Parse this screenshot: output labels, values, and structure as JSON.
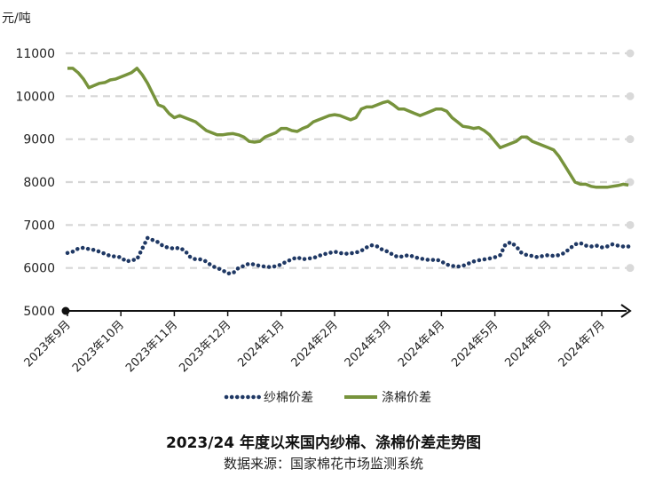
{
  "chart_data": {
    "type": "line",
    "title": "2023/24 年度以来国内纱棉、涤棉价差走势图",
    "source": "数据来源：国家棉花市场监测系统",
    "ylabel": "元/吨",
    "ylim": [
      5000,
      11000
    ],
    "yticks": [
      "5000",
      "6000",
      "7000",
      "8000",
      "9000",
      "10000",
      "11000"
    ],
    "categories": [
      "2023年9月",
      "2023年10月",
      "2023年11月",
      "2023年12月",
      "2024年1月",
      "2024年2月",
      "2024年3月",
      "2024年4月",
      "2024年5月",
      "2024年6月",
      "2024年7月"
    ],
    "grid": true,
    "legend_position": "bottom",
    "series": [
      {
        "name": "纱棉价差",
        "style": "dotted",
        "color": "#1f3864",
        "values": [
          [
            0.0,
            6350
          ],
          [
            0.1,
            6380
          ],
          [
            0.2,
            6450
          ],
          [
            0.3,
            6470
          ],
          [
            0.4,
            6440
          ],
          [
            0.5,
            6420
          ],
          [
            0.6,
            6380
          ],
          [
            0.7,
            6330
          ],
          [
            0.8,
            6280
          ],
          [
            1.0,
            6250
          ],
          [
            1.1,
            6150
          ],
          [
            1.2,
            6180
          ],
          [
            1.3,
            6200
          ],
          [
            1.4,
            6450
          ],
          [
            1.5,
            6700
          ],
          [
            1.6,
            6650
          ],
          [
            1.7,
            6600
          ],
          [
            1.8,
            6500
          ],
          [
            1.9,
            6470
          ],
          [
            2.0,
            6450
          ],
          [
            2.1,
            6470
          ],
          [
            2.2,
            6400
          ],
          [
            2.3,
            6250
          ],
          [
            2.4,
            6200
          ],
          [
            2.5,
            6200
          ],
          [
            2.6,
            6150
          ],
          [
            2.7,
            6050
          ],
          [
            2.8,
            6000
          ],
          [
            2.9,
            5950
          ],
          [
            3.0,
            5870
          ],
          [
            3.1,
            5880
          ],
          [
            3.2,
            6000
          ],
          [
            3.3,
            6050
          ],
          [
            3.4,
            6100
          ],
          [
            3.5,
            6080
          ],
          [
            3.6,
            6050
          ],
          [
            3.7,
            6030
          ],
          [
            3.8,
            6020
          ],
          [
            3.9,
            6040
          ],
          [
            4.0,
            6080
          ],
          [
            4.1,
            6150
          ],
          [
            4.2,
            6200
          ],
          [
            4.3,
            6250
          ],
          [
            4.4,
            6200
          ],
          [
            4.5,
            6220
          ],
          [
            4.6,
            6230
          ],
          [
            4.7,
            6280
          ],
          [
            4.8,
            6320
          ],
          [
            4.9,
            6350
          ],
          [
            5.0,
            6380
          ],
          [
            5.1,
            6350
          ],
          [
            5.2,
            6330
          ],
          [
            5.3,
            6340
          ],
          [
            5.4,
            6360
          ],
          [
            5.5,
            6400
          ],
          [
            5.6,
            6480
          ],
          [
            5.7,
            6530
          ],
          [
            5.8,
            6500
          ],
          [
            5.9,
            6420
          ],
          [
            6.0,
            6380
          ],
          [
            6.1,
            6300
          ],
          [
            6.2,
            6250
          ],
          [
            6.3,
            6280
          ],
          [
            6.4,
            6300
          ],
          [
            6.5,
            6250
          ],
          [
            6.6,
            6220
          ],
          [
            6.7,
            6200
          ],
          [
            6.8,
            6180
          ],
          [
            6.9,
            6200
          ],
          [
            7.0,
            6150
          ],
          [
            7.1,
            6080
          ],
          [
            7.2,
            6050
          ],
          [
            7.3,
            6030
          ],
          [
            7.4,
            6050
          ],
          [
            7.5,
            6100
          ],
          [
            7.6,
            6150
          ],
          [
            7.7,
            6180
          ],
          [
            7.8,
            6200
          ],
          [
            7.9,
            6220
          ],
          [
            8.0,
            6250
          ],
          [
            8.1,
            6300
          ],
          [
            8.2,
            6550
          ],
          [
            8.3,
            6600
          ],
          [
            8.4,
            6500
          ],
          [
            8.5,
            6350
          ],
          [
            8.6,
            6300
          ],
          [
            8.7,
            6280
          ],
          [
            8.8,
            6250
          ],
          [
            8.9,
            6280
          ],
          [
            9.0,
            6300
          ],
          [
            9.1,
            6280
          ],
          [
            9.2,
            6300
          ],
          [
            9.3,
            6350
          ],
          [
            9.4,
            6450
          ],
          [
            9.5,
            6550
          ],
          [
            9.6,
            6580
          ],
          [
            9.7,
            6520
          ],
          [
            9.8,
            6500
          ],
          [
            9.9,
            6520
          ],
          [
            10.0,
            6480
          ],
          [
            10.1,
            6500
          ],
          [
            10.2,
            6550
          ],
          [
            10.3,
            6520
          ],
          [
            10.4,
            6500
          ],
          [
            10.5,
            6500
          ]
        ]
      },
      {
        "name": "涤棉价差",
        "style": "solid",
        "color": "#77933c",
        "values": [
          [
            0.0,
            10650
          ],
          [
            0.1,
            10650
          ],
          [
            0.2,
            10550
          ],
          [
            0.3,
            10400
          ],
          [
            0.4,
            10200
          ],
          [
            0.5,
            10250
          ],
          [
            0.6,
            10300
          ],
          [
            0.7,
            10320
          ],
          [
            0.8,
            10380
          ],
          [
            0.9,
            10400
          ],
          [
            1.0,
            10450
          ],
          [
            1.1,
            10500
          ],
          [
            1.2,
            10550
          ],
          [
            1.3,
            10650
          ],
          [
            1.4,
            10500
          ],
          [
            1.5,
            10300
          ],
          [
            1.6,
            10050
          ],
          [
            1.7,
            9800
          ],
          [
            1.8,
            9750
          ],
          [
            1.9,
            9600
          ],
          [
            2.0,
            9500
          ],
          [
            2.1,
            9550
          ],
          [
            2.2,
            9500
          ],
          [
            2.3,
            9450
          ],
          [
            2.4,
            9400
          ],
          [
            2.5,
            9300
          ],
          [
            2.6,
            9200
          ],
          [
            2.7,
            9150
          ],
          [
            2.8,
            9100
          ],
          [
            2.9,
            9100
          ],
          [
            3.0,
            9120
          ],
          [
            3.1,
            9130
          ],
          [
            3.2,
            9100
          ],
          [
            3.3,
            9050
          ],
          [
            3.4,
            8950
          ],
          [
            3.5,
            8930
          ],
          [
            3.6,
            8950
          ],
          [
            3.7,
            9050
          ],
          [
            3.8,
            9100
          ],
          [
            3.9,
            9150
          ],
          [
            4.0,
            9250
          ],
          [
            4.1,
            9250
          ],
          [
            4.2,
            9200
          ],
          [
            4.3,
            9180
          ],
          [
            4.4,
            9250
          ],
          [
            4.5,
            9300
          ],
          [
            4.6,
            9400
          ],
          [
            4.7,
            9450
          ],
          [
            4.8,
            9500
          ],
          [
            4.9,
            9550
          ],
          [
            5.0,
            9570
          ],
          [
            5.1,
            9550
          ],
          [
            5.2,
            9500
          ],
          [
            5.3,
            9450
          ],
          [
            5.4,
            9500
          ],
          [
            5.5,
            9700
          ],
          [
            5.6,
            9750
          ],
          [
            5.7,
            9750
          ],
          [
            5.8,
            9800
          ],
          [
            5.9,
            9850
          ],
          [
            6.0,
            9880
          ],
          [
            6.1,
            9800
          ],
          [
            6.2,
            9700
          ],
          [
            6.3,
            9700
          ],
          [
            6.4,
            9650
          ],
          [
            6.5,
            9600
          ],
          [
            6.6,
            9550
          ],
          [
            6.7,
            9600
          ],
          [
            6.8,
            9650
          ],
          [
            6.9,
            9700
          ],
          [
            7.0,
            9700
          ],
          [
            7.1,
            9650
          ],
          [
            7.2,
            9500
          ],
          [
            7.3,
            9400
          ],
          [
            7.4,
            9300
          ],
          [
            7.5,
            9280
          ],
          [
            7.6,
            9250
          ],
          [
            7.7,
            9270
          ],
          [
            7.8,
            9200
          ],
          [
            7.9,
            9100
          ],
          [
            8.0,
            8950
          ],
          [
            8.1,
            8800
          ],
          [
            8.2,
            8850
          ],
          [
            8.3,
            8900
          ],
          [
            8.4,
            8950
          ],
          [
            8.5,
            9050
          ],
          [
            8.6,
            9050
          ],
          [
            8.7,
            8950
          ],
          [
            8.8,
            8900
          ],
          [
            8.9,
            8850
          ],
          [
            9.0,
            8800
          ],
          [
            9.1,
            8750
          ],
          [
            9.2,
            8600
          ],
          [
            9.3,
            8400
          ],
          [
            9.4,
            8200
          ],
          [
            9.5,
            8000
          ],
          [
            9.6,
            7950
          ],
          [
            9.7,
            7950
          ],
          [
            9.8,
            7900
          ],
          [
            9.9,
            7880
          ],
          [
            10.0,
            7880
          ],
          [
            10.1,
            7880
          ],
          [
            10.2,
            7900
          ],
          [
            10.3,
            7920
          ],
          [
            10.4,
            7950
          ],
          [
            10.5,
            7930
          ]
        ]
      }
    ]
  }
}
